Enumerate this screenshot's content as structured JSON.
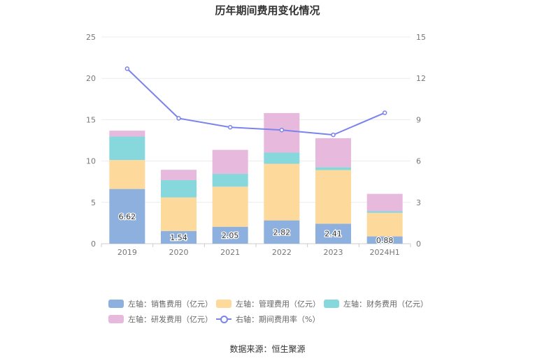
{
  "chart_data": {
    "type": "bar",
    "title": "历年期间费用变化情况",
    "categories": [
      "2019",
      "2020",
      "2021",
      "2022",
      "2023",
      "2024H1"
    ],
    "y_left": {
      "ticks": [
        "0",
        "5",
        "10",
        "15",
        "20",
        "25"
      ],
      "ylim": [
        0,
        25
      ]
    },
    "y_right": {
      "ticks": [
        "0",
        "3",
        "6",
        "9",
        "12",
        "15"
      ],
      "ylim": [
        0,
        15
      ]
    },
    "grid": true,
    "legend_position": "bottom",
    "series": [
      {
        "name": "左轴：销售费用（亿元）",
        "type": "bar",
        "axis": "left",
        "color": "#8eb0de",
        "values": [
          6.62,
          1.54,
          2.05,
          2.82,
          2.41,
          0.88
        ],
        "labels": [
          "6.62",
          "1.54",
          "2.05",
          "2.82",
          "2.41",
          "0.88"
        ]
      },
      {
        "name": "左轴：管理费用（亿元）",
        "type": "bar",
        "axis": "left",
        "color": "#fdd99b",
        "values": [
          3.5,
          4.05,
          4.85,
          6.85,
          6.5,
          2.85
        ]
      },
      {
        "name": "左轴：财务费用（亿元）",
        "type": "bar",
        "axis": "left",
        "color": "#86d8dd",
        "values": [
          2.85,
          2.1,
          1.55,
          1.35,
          0.35,
          0.2
        ]
      },
      {
        "name": "左轴：研发费用（亿元）",
        "type": "bar",
        "axis": "left",
        "color": "#e7b9dd",
        "values": [
          0.7,
          1.25,
          2.9,
          4.78,
          3.5,
          2.1
        ]
      },
      {
        "name": "右轴：期间费用率（%）",
        "type": "line",
        "axis": "right",
        "color": "#7b83ec",
        "values": [
          12.7,
          9.1,
          8.45,
          8.25,
          7.9,
          9.5
        ]
      }
    ]
  },
  "source": "数据来源：恒生聚源"
}
